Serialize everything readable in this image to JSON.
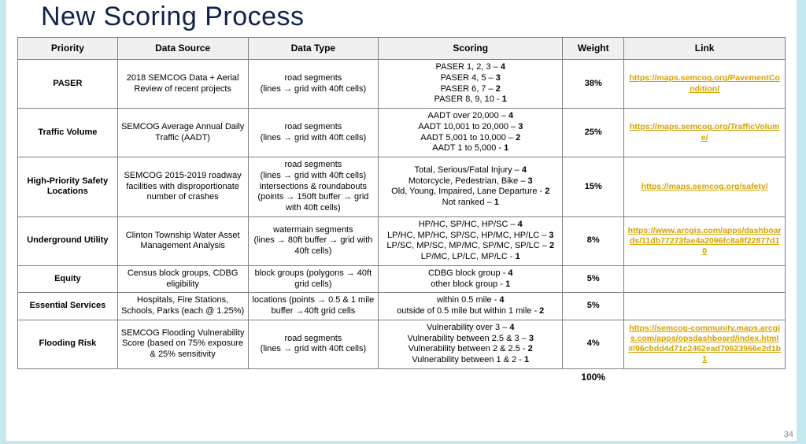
{
  "title": "New Scoring Process",
  "page_number": "34",
  "headers": {
    "priority": "Priority",
    "source": "Data Source",
    "type": "Data Type",
    "scoring": "Scoring",
    "weight": "Weight",
    "link": "Link"
  },
  "rows": [
    {
      "priority": "PASER",
      "source": "2018 SEMCOG Data + Aerial Review of recent projects",
      "type": "road segments\n(lines → grid with 40ft cells)",
      "scoring": "PASER 1, 2, 3 – 4\nPASER 4, 5 – 3\nPASER 6, 7 – 2\nPASER 8, 9, 10 - 1",
      "weight": "38%",
      "link": "https://maps.semcog.org/PavementCondition/"
    },
    {
      "priority": "Traffic Volume",
      "source": "SEMCOG Average Annual Daily Traffic (AADT)",
      "type": "road segments\n(lines → grid with 40ft cells)",
      "scoring": "AADT over 20,000 – 4\nAADT 10,001 to 20,000 – 3\nAADT 5,001 to 10,000 – 2\nAADT 1 to 5,000 - 1",
      "weight": "25%",
      "link": "https://maps.semcog.org/TrafficVolume/"
    },
    {
      "priority": "High-Priority Safety Locations",
      "source": "SEMCOG 2015-2019 roadway facilities with disproportionate number of crashes",
      "type": "road segments\n(lines → grid with 40ft cells)\nintersections & roundabouts\n(points → 150ft buffer → grid with 40ft cells)",
      "scoring": "Total, Serious/Fatal Injury – 4\nMotorcycle, Pedestrian, Bike – 3\nOld, Young, Impaired, Lane Departure - 2\nNot ranked – 1",
      "weight": "15%",
      "link": "https://maps.semcog.org/safety/"
    },
    {
      "priority": "Underground Utility",
      "source": "Clinton Township Water Asset Management Analysis",
      "type": "watermain segments\n(lines → 80ft buffer → grid with 40ft cells)",
      "scoring": "HP/HC, SP/HC, HP/SC – 4\nLP/HC, MP/HC, SP/SC, HP/MC, HP/LC – 3\nLP/SC, MP/SC, MP/MC, SP/MC, SP/LC – 2\nLP/MC, LP/LC, MP/LC - 1",
      "weight": "8%",
      "link": "https://www.arcgis.com/apps/dashboards/11db77273fae4a2096fc8a8f22877d10"
    },
    {
      "priority": "Equity",
      "source": "Census block groups, CDBG eligibility",
      "type": "block groups (polygons → 40ft grid cells)",
      "scoring": "CDBG block group - 4\nother block group - 1",
      "weight": "5%",
      "link": ""
    },
    {
      "priority": "Essential Services",
      "source": "Hospitals, Fire Stations, Schools, Parks (each @ 1.25%)",
      "type": "locations (points → 0.5 & 1 mile buffer →40ft grid cells",
      "scoring": "within 0.5 mile - 4\noutside of 0.5 mile but within 1 mile - 2",
      "weight": "5%",
      "link": ""
    },
    {
      "priority": "Flooding Risk",
      "source": "SEMCOG Flooding Vulnerability Score (based on 75% exposure & 25% sensitivity",
      "type": "road segments\n(lines → grid with 40ft cells)",
      "scoring": "Vulnerability over 3 – 4\nVulnerability between 2.5 & 3 – 3\nVulnerability between 2 & 2.5 -  2\nVulnerability between 1 & 2 - 1",
      "weight": "4%",
      "link": "https://semcog-community.maps.arcgis.com/apps/opsdashboard/index.html#/96cbdd4d71c2462ead70623966e2d1b1"
    }
  ],
  "total": "100%",
  "colors": {
    "page_bg": "#c5e8f0",
    "slide_bg": "#ffffff",
    "title_color": "#0f2349",
    "header_bg": "#f0f0f0",
    "border": "#808080",
    "link_color": "#d6a100",
    "pagenum_color": "#8a8a8a"
  }
}
